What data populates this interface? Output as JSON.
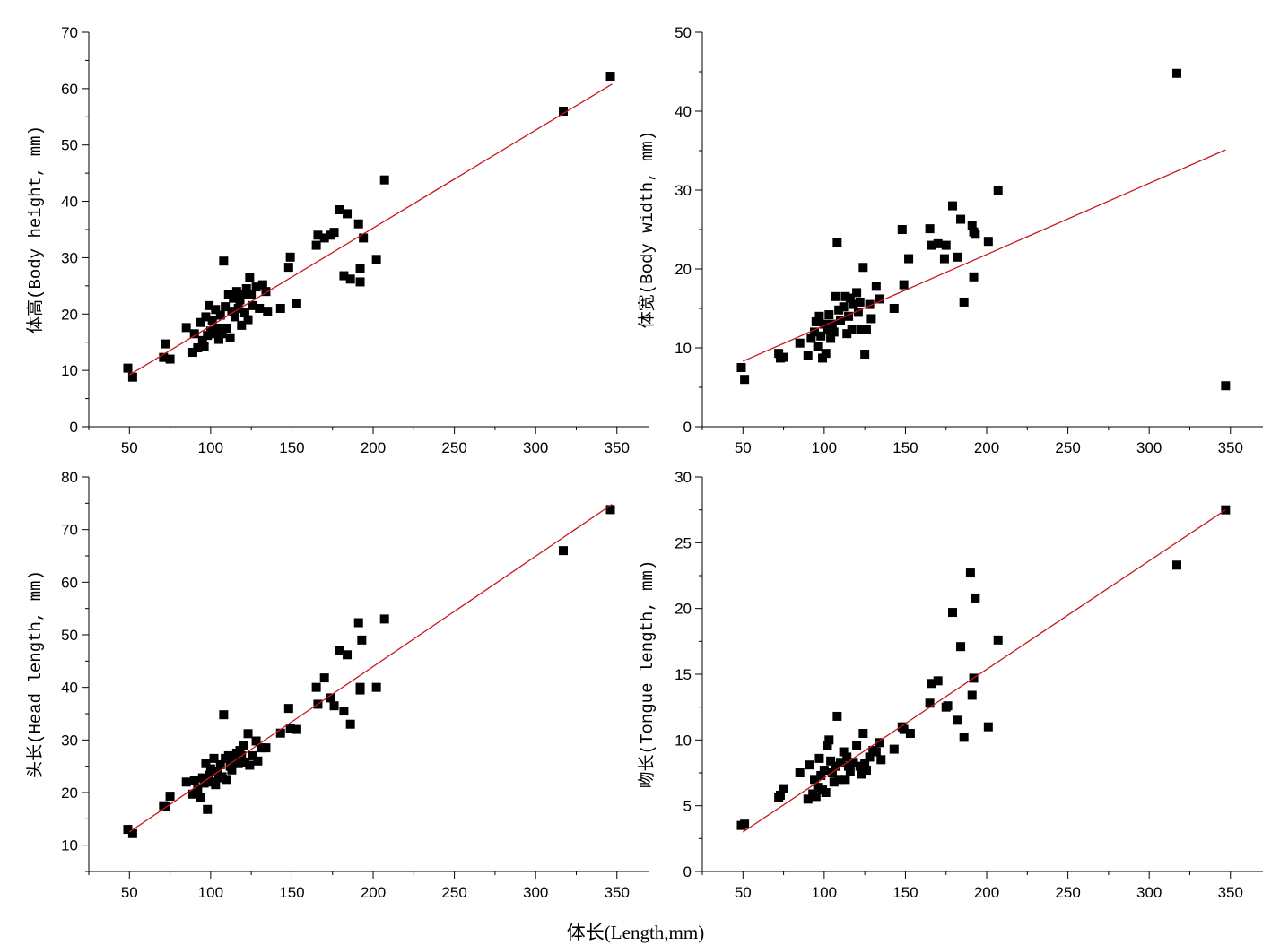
{
  "figure": {
    "shared_xlabel": "体长(Length,mm)",
    "colors": {
      "point": "#000000",
      "fit_line": "#c8161d",
      "axis": "#000000"
    }
  },
  "chart_data": [
    {
      "type": "scatter",
      "id": "body-height",
      "xlabel": "体长(Length,mm)",
      "ylabel": "体高(Body height, mm)",
      "xlim": [
        25,
        370
      ],
      "ylim": [
        0,
        70
      ],
      "xticks": [
        50,
        100,
        150,
        200,
        250,
        300,
        350
      ],
      "yticks": [
        0,
        10,
        20,
        30,
        40,
        50,
        60,
        70
      ],
      "fit_line": {
        "x": [
          50,
          347
        ],
        "y": [
          9.2,
          60.8
        ]
      },
      "points": [
        [
          49,
          10.4
        ],
        [
          52,
          8.8
        ],
        [
          71,
          12.3
        ],
        [
          72,
          14.7
        ],
        [
          75,
          12
        ],
        [
          85,
          17.6
        ],
        [
          89,
          13.2
        ],
        [
          90,
          16.5
        ],
        [
          92,
          14
        ],
        [
          94,
          18.5
        ],
        [
          95,
          15.3
        ],
        [
          96,
          14.3
        ],
        [
          97,
          19.5
        ],
        [
          98,
          16.2
        ],
        [
          99,
          21.5
        ],
        [
          100,
          17
        ],
        [
          101,
          18.8
        ],
        [
          102,
          16.5
        ],
        [
          103,
          20.8
        ],
        [
          104,
          17.5
        ],
        [
          105,
          15.5
        ],
        [
          106,
          19.8
        ],
        [
          107,
          16.5
        ],
        [
          108,
          29.4
        ],
        [
          109,
          21.3
        ],
        [
          110,
          17.5
        ],
        [
          111,
          23.5
        ],
        [
          112,
          15.8
        ],
        [
          113,
          20.5
        ],
        [
          114,
          22.8
        ],
        [
          115,
          19.5
        ],
        [
          116,
          24
        ],
        [
          117,
          21
        ],
        [
          118,
          22.5
        ],
        [
          119,
          18
        ],
        [
          120,
          23.5
        ],
        [
          121,
          20.2
        ],
        [
          122,
          24.5
        ],
        [
          123,
          19
        ],
        [
          124,
          26.5
        ],
        [
          125,
          23.5
        ],
        [
          126,
          21.5
        ],
        [
          128,
          24.8
        ],
        [
          130,
          21
        ],
        [
          132,
          25.2
        ],
        [
          134,
          24
        ],
        [
          135,
          20.5
        ],
        [
          143,
          21
        ],
        [
          148,
          28.3
        ],
        [
          149,
          30.1
        ],
        [
          153,
          21.8
        ],
        [
          165,
          32.2
        ],
        [
          166,
          34
        ],
        [
          170,
          33.5
        ],
        [
          174,
          34
        ],
        [
          176,
          34.5
        ],
        [
          179,
          38.5
        ],
        [
          182,
          26.8
        ],
        [
          184,
          37.8
        ],
        [
          186,
          26.2
        ],
        [
          191,
          36
        ],
        [
          192,
          25.7
        ],
        [
          192,
          28
        ],
        [
          194,
          33.5
        ],
        [
          202,
          29.7
        ],
        [
          207,
          43.8
        ],
        [
          317,
          56
        ],
        [
          346,
          62.2
        ]
      ]
    },
    {
      "type": "scatter",
      "id": "body-width",
      "xlabel": "体长(Length,mm)",
      "ylabel": "体宽(Body width, mm)",
      "xlim": [
        25,
        370
      ],
      "ylim": [
        0,
        50
      ],
      "xticks": [
        50,
        100,
        150,
        200,
        250,
        300,
        350
      ],
      "yticks": [
        0,
        10,
        20,
        30,
        40,
        50
      ],
      "fit_line": {
        "x": [
          50,
          347
        ],
        "y": [
          8.3,
          35.1
        ]
      },
      "points": [
        [
          49,
          7.5
        ],
        [
          51,
          6
        ],
        [
          72,
          9.3
        ],
        [
          73,
          8.7
        ],
        [
          75,
          8.8
        ],
        [
          85,
          10.6
        ],
        [
          90,
          9
        ],
        [
          92,
          11.2
        ],
        [
          94,
          12
        ],
        [
          95,
          13.3
        ],
        [
          96,
          10.2
        ],
        [
          97,
          14
        ],
        [
          98,
          11.5
        ],
        [
          99,
          8.7
        ],
        [
          100,
          13
        ],
        [
          101,
          9.3
        ],
        [
          102,
          12.3
        ],
        [
          103,
          14.2
        ],
        [
          104,
          11.2
        ],
        [
          105,
          13
        ],
        [
          106,
          12
        ],
        [
          107,
          16.5
        ],
        [
          108,
          23.4
        ],
        [
          109,
          14.8
        ],
        [
          110,
          13.5
        ],
        [
          112,
          15.2
        ],
        [
          113,
          16.5
        ],
        [
          114,
          11.8
        ],
        [
          115,
          14
        ],
        [
          116,
          16.3
        ],
        [
          117,
          12.3
        ],
        [
          118,
          15.5
        ],
        [
          120,
          17
        ],
        [
          121,
          14.5
        ],
        [
          122,
          15.8
        ],
        [
          123,
          12.3
        ],
        [
          124,
          20.2
        ],
        [
          125,
          9.2
        ],
        [
          126,
          12.3
        ],
        [
          128,
          15.5
        ],
        [
          129,
          13.7
        ],
        [
          132,
          17.8
        ],
        [
          134,
          16.2
        ],
        [
          143,
          15
        ],
        [
          148,
          25
        ],
        [
          149,
          18
        ],
        [
          152,
          21.3
        ],
        [
          165,
          25.1
        ],
        [
          166,
          23
        ],
        [
          170,
          23.2
        ],
        [
          174,
          21.3
        ],
        [
          175,
          23
        ],
        [
          179,
          28
        ],
        [
          182,
          21.5
        ],
        [
          184,
          26.3
        ],
        [
          186,
          15.8
        ],
        [
          191,
          25.5
        ],
        [
          192,
          24.7
        ],
        [
          192,
          19
        ],
        [
          193,
          24.4
        ],
        [
          201,
          23.5
        ],
        [
          207,
          30
        ],
        [
          317,
          44.8
        ],
        [
          347,
          5.2
        ]
      ]
    },
    {
      "type": "scatter",
      "id": "head-length",
      "xlabel": "体长(Length,mm)",
      "ylabel": "头长(Head length, mm)",
      "xlim": [
        25,
        370
      ],
      "ylim": [
        5,
        80
      ],
      "xticks": [
        50,
        100,
        150,
        200,
        250,
        300,
        350
      ],
      "yticks": [
        10,
        20,
        30,
        40,
        50,
        60,
        70,
        80
      ],
      "fit_line": {
        "x": [
          50,
          347
        ],
        "y": [
          12.5,
          74.8
        ]
      },
      "points": [
        [
          49,
          13
        ],
        [
          52,
          12.2
        ],
        [
          71,
          17.5
        ],
        [
          72,
          17.3
        ],
        [
          75,
          19.3
        ],
        [
          85,
          22
        ],
        [
          89,
          19.7
        ],
        [
          90,
          22.3
        ],
        [
          92,
          20.5
        ],
        [
          94,
          19
        ],
        [
          95,
          22.8
        ],
        [
          96,
          21.8
        ],
        [
          97,
          25.5
        ],
        [
          98,
          16.8
        ],
        [
          99,
          23.3
        ],
        [
          100,
          24.5
        ],
        [
          101,
          22
        ],
        [
          102,
          26.5
        ],
        [
          103,
          21.5
        ],
        [
          104,
          24
        ],
        [
          105,
          22.8
        ],
        [
          106,
          25.3
        ],
        [
          107,
          23
        ],
        [
          108,
          34.8
        ],
        [
          109,
          26.5
        ],
        [
          110,
          22.5
        ],
        [
          111,
          27
        ],
        [
          112,
          25
        ],
        [
          113,
          24.3
        ],
        [
          114,
          26.5
        ],
        [
          116,
          27.5
        ],
        [
          117,
          25.5
        ],
        [
          118,
          28
        ],
        [
          119,
          27
        ],
        [
          120,
          29
        ],
        [
          121,
          25.8
        ],
        [
          123,
          31.2
        ],
        [
          124,
          25.2
        ],
        [
          126,
          27
        ],
        [
          128,
          29.8
        ],
        [
          129,
          26
        ],
        [
          131,
          28.5
        ],
        [
          134,
          28.5
        ],
        [
          143,
          31.3
        ],
        [
          148,
          36
        ],
        [
          149,
          32.2
        ],
        [
          153,
          32
        ],
        [
          165,
          40
        ],
        [
          166,
          36.8
        ],
        [
          170,
          41.8
        ],
        [
          174,
          38
        ],
        [
          176,
          36.5
        ],
        [
          179,
          47
        ],
        [
          182,
          35.5
        ],
        [
          184,
          46.2
        ],
        [
          186,
          33
        ],
        [
          191,
          52.3
        ],
        [
          192,
          40
        ],
        [
          192,
          39.5
        ],
        [
          193,
          49
        ],
        [
          202,
          40
        ],
        [
          207,
          53
        ],
        [
          317,
          66
        ],
        [
          346,
          73.8
        ]
      ]
    },
    {
      "type": "scatter",
      "id": "tongue-length",
      "xlabel": "体长(Length,mm)",
      "ylabel": "吻长(Tongue length, mm)",
      "xlim": [
        25,
        370
      ],
      "ylim": [
        0,
        30
      ],
      "xticks": [
        50,
        100,
        150,
        200,
        250,
        300,
        350
      ],
      "yticks": [
        0,
        5,
        10,
        15,
        20,
        25,
        30
      ],
      "fit_line": {
        "x": [
          50,
          347
        ],
        "y": [
          3,
          27.5
        ]
      },
      "points": [
        [
          49,
          3.5
        ],
        [
          51,
          3.6
        ],
        [
          72,
          5.6
        ],
        [
          73,
          5.8
        ],
        [
          75,
          6.3
        ],
        [
          85,
          7.5
        ],
        [
          90,
          5.5
        ],
        [
          91,
          8.1
        ],
        [
          93,
          5.9
        ],
        [
          94,
          7
        ],
        [
          95,
          5.7
        ],
        [
          96,
          6.4
        ],
        [
          97,
          8.6
        ],
        [
          98,
          7.3
        ],
        [
          99,
          6.2
        ],
        [
          100,
          7.7
        ],
        [
          101,
          6
        ],
        [
          102,
          9.6
        ],
        [
          103,
          10
        ],
        [
          104,
          8.4
        ],
        [
          105,
          7.5
        ],
        [
          106,
          6.8
        ],
        [
          107,
          8
        ],
        [
          108,
          11.8
        ],
        [
          109,
          7
        ],
        [
          110,
          8.3
        ],
        [
          112,
          9.1
        ],
        [
          113,
          7
        ],
        [
          114,
          8.7
        ],
        [
          115,
          8
        ],
        [
          116,
          7.6
        ],
        [
          118,
          8.3
        ],
        [
          120,
          9.6
        ],
        [
          122,
          8
        ],
        [
          123,
          7.4
        ],
        [
          124,
          10.5
        ],
        [
          125,
          8.2
        ],
        [
          126,
          7.7
        ],
        [
          128,
          8.7
        ],
        [
          130,
          9.2
        ],
        [
          132,
          9.1
        ],
        [
          134,
          9.8
        ],
        [
          135,
          8.5
        ],
        [
          143,
          9.3
        ],
        [
          148,
          11
        ],
        [
          149,
          10.8
        ],
        [
          153,
          10.5
        ],
        [
          165,
          12.8
        ],
        [
          166,
          14.3
        ],
        [
          170,
          14.5
        ],
        [
          175,
          12.5
        ],
        [
          176,
          12.6
        ],
        [
          179,
          19.7
        ],
        [
          182,
          11.5
        ],
        [
          184,
          17.1
        ],
        [
          186,
          10.2
        ],
        [
          190,
          22.7
        ],
        [
          191,
          13.4
        ],
        [
          192,
          14.7
        ],
        [
          193,
          20.8
        ],
        [
          201,
          11
        ],
        [
          207,
          17.6
        ],
        [
          317,
          23.3
        ],
        [
          347,
          27.5
        ]
      ]
    }
  ]
}
